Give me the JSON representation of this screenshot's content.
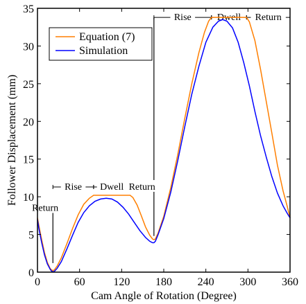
{
  "chart_data": {
    "type": "line",
    "xlabel": "Cam Angle of Rotation (Degree)",
    "ylabel": "Follower Displacement (mm)",
    "xlim": [
      0,
      360
    ],
    "ylim": [
      0,
      35
    ],
    "xticks": [
      0,
      60,
      120,
      180,
      240,
      300,
      360
    ],
    "yticks": [
      0,
      5,
      10,
      15,
      20,
      25,
      30,
      35
    ],
    "grid": false,
    "legend_position": "top-left",
    "series": [
      {
        "name": "Equation (7)",
        "color": "#ff7f00",
        "points": [
          [
            0,
            7.2
          ],
          [
            2,
            6.2
          ],
          [
            6,
            4.3
          ],
          [
            10,
            2.6
          ],
          [
            14,
            1.3
          ],
          [
            18,
            0.5
          ],
          [
            20,
            0.3
          ],
          [
            22,
            0.2
          ],
          [
            24,
            0.3
          ],
          [
            28,
            0.8
          ],
          [
            34,
            1.9
          ],
          [
            42,
            3.8
          ],
          [
            50,
            5.8
          ],
          [
            58,
            7.6
          ],
          [
            66,
            9.0
          ],
          [
            74,
            9.8
          ],
          [
            80,
            10.2
          ],
          [
            132,
            10.2
          ],
          [
            136,
            9.9
          ],
          [
            142,
            8.9
          ],
          [
            148,
            7.5
          ],
          [
            154,
            6.0
          ],
          [
            160,
            4.9
          ],
          [
            164,
            4.4
          ],
          [
            166,
            4.3
          ],
          [
            168,
            4.4
          ],
          [
            172,
            5.2
          ],
          [
            180,
            7.4
          ],
          [
            190,
            11.2
          ],
          [
            200,
            15.6
          ],
          [
            210,
            20.4
          ],
          [
            220,
            25.0
          ],
          [
            230,
            29.1
          ],
          [
            238,
            31.8
          ],
          [
            244,
            33.3
          ],
          [
            248,
            33.8
          ],
          [
            298,
            33.8
          ],
          [
            302,
            33.2
          ],
          [
            310,
            30.7
          ],
          [
            318,
            26.9
          ],
          [
            326,
            22.7
          ],
          [
            334,
            18.5
          ],
          [
            342,
            14.2
          ],
          [
            350,
            10.8
          ],
          [
            356,
            8.7
          ],
          [
            360,
            7.2
          ]
        ]
      },
      {
        "name": "Simulation",
        "color": "#0000ff",
        "points": [
          [
            0,
            7.0
          ],
          [
            2,
            5.8
          ],
          [
            6,
            3.9
          ],
          [
            10,
            2.3
          ],
          [
            14,
            1.1
          ],
          [
            18,
            0.4
          ],
          [
            20,
            0.15
          ],
          [
            22,
            0.05
          ],
          [
            24,
            0.1
          ],
          [
            28,
            0.5
          ],
          [
            34,
            1.4
          ],
          [
            42,
            3.1
          ],
          [
            50,
            4.9
          ],
          [
            58,
            6.6
          ],
          [
            66,
            7.9
          ],
          [
            74,
            8.8
          ],
          [
            82,
            9.4
          ],
          [
            90,
            9.7
          ],
          [
            98,
            9.8
          ],
          [
            106,
            9.7
          ],
          [
            114,
            9.3
          ],
          [
            122,
            8.6
          ],
          [
            130,
            7.7
          ],
          [
            138,
            6.6
          ],
          [
            146,
            5.5
          ],
          [
            154,
            4.6
          ],
          [
            160,
            4.1
          ],
          [
            164,
            3.9
          ],
          [
            166,
            3.9
          ],
          [
            168,
            4.1
          ],
          [
            172,
            5.0
          ],
          [
            180,
            7.1
          ],
          [
            190,
            10.6
          ],
          [
            200,
            14.8
          ],
          [
            210,
            19.3
          ],
          [
            220,
            23.6
          ],
          [
            230,
            27.3
          ],
          [
            240,
            30.5
          ],
          [
            250,
            32.5
          ],
          [
            258,
            33.3
          ],
          [
            264,
            33.5
          ],
          [
            270,
            33.3
          ],
          [
            278,
            32.4
          ],
          [
            286,
            30.5
          ],
          [
            294,
            27.8
          ],
          [
            302,
            24.7
          ],
          [
            310,
            21.3
          ],
          [
            318,
            18.1
          ],
          [
            326,
            15.3
          ],
          [
            334,
            12.7
          ],
          [
            342,
            10.5
          ],
          [
            350,
            8.8
          ],
          [
            356,
            7.8
          ],
          [
            360,
            7.2
          ]
        ]
      }
    ],
    "annotations": [
      {
        "label": "Return",
        "x_from": 0,
        "x_to": 22,
        "y": 8.5
      },
      {
        "label": "Rise",
        "x_from": 22,
        "x_to": 80,
        "y": 11.3
      },
      {
        "label": "Dwell",
        "x_from": 80,
        "x_to": 132,
        "y": 11.3
      },
      {
        "label": "Return",
        "x_from": 132,
        "x_to": 166,
        "y": 11.3
      },
      {
        "label": "Rise",
        "x_from": 166,
        "x_to": 248,
        "y": 33.8
      },
      {
        "label": "Dwell",
        "x_from": 248,
        "x_to": 298,
        "y": 33.8
      },
      {
        "label": "Return",
        "x_from": 298,
        "x_to": 360,
        "y": 33.8
      }
    ],
    "phase_lines": [
      {
        "x": 22,
        "y_bottom": 1.2,
        "y_top": 8.5
      },
      {
        "x": 166,
        "y_bottom": 4.8,
        "y_top": 33.8
      }
    ]
  }
}
